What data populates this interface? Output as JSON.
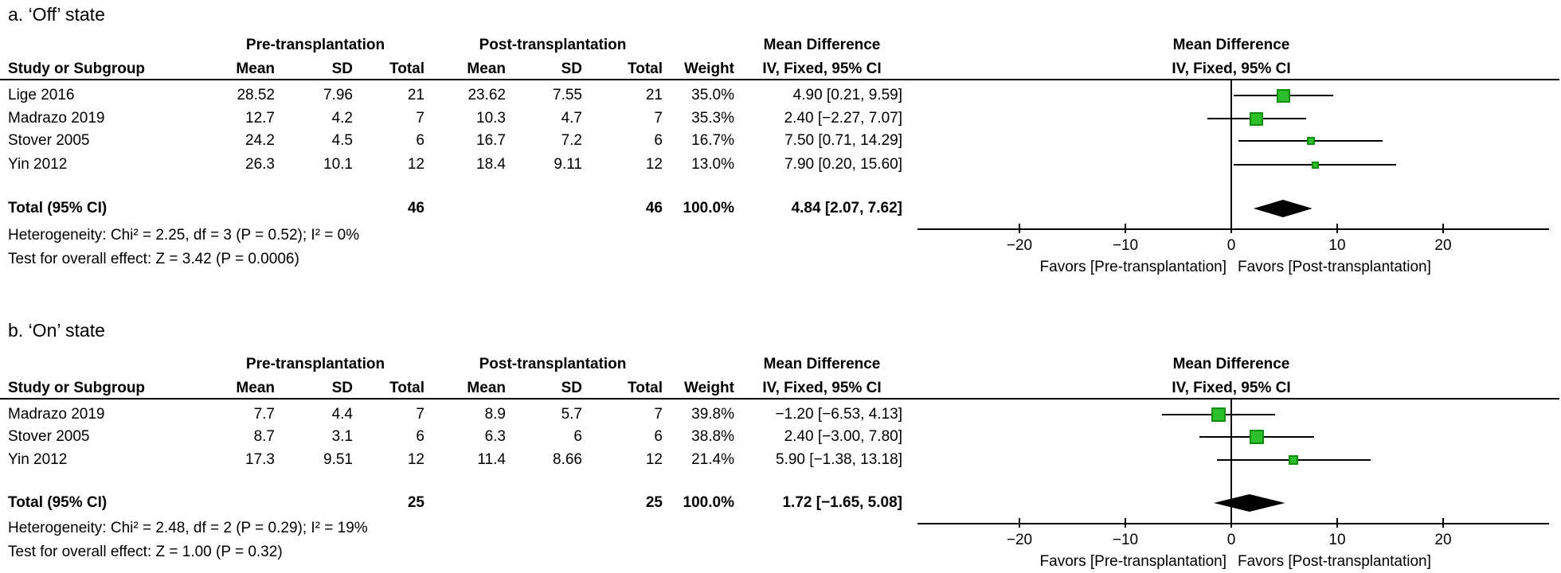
{
  "colors": {
    "background": "#ffffff",
    "text": "#000000",
    "line": "#000000",
    "marker_fill": "#2dbe2d",
    "marker_border": "#0d8e0d",
    "diamond_fill": "#000000"
  },
  "headers": {
    "group_pre": "Pre-transplantation",
    "group_post": "Post-transplantation",
    "study": "Study or Subgroup",
    "mean": "Mean",
    "sd": "SD",
    "total": "Total",
    "weight": "Weight",
    "md_line1": "Mean Difference",
    "md_line2": "IV, Fixed, 95% CI"
  },
  "chart_data": [
    {
      "type": "forest",
      "title": "a. ‘Off’ state",
      "studies": [
        {
          "study": "Lige 2016",
          "mean_pre": "28.52",
          "sd_pre": "7.96",
          "total_pre": "21",
          "mean_post": "23.62",
          "sd_post": "7.55",
          "total_post": "21",
          "weight": "35.0%",
          "weight_pct": 35.0,
          "ci_text": "4.90 [0.21, 9.59]",
          "md": 4.9,
          "lo": 0.21,
          "hi": 9.59
        },
        {
          "study": "Madrazo 2019",
          "mean_pre": "12.7",
          "sd_pre": "4.2",
          "total_pre": "7",
          "mean_post": "10.3",
          "sd_post": "4.7",
          "total_post": "7",
          "weight": "35.3%",
          "weight_pct": 35.3,
          "ci_text": "2.40 [−2.27, 7.07]",
          "md": 2.4,
          "lo": -2.27,
          "hi": 7.07
        },
        {
          "study": "Stover 2005",
          "mean_pre": "24.2",
          "sd_pre": "4.5",
          "total_pre": "6",
          "mean_post": "16.7",
          "sd_post": "7.2",
          "total_post": "6",
          "weight": "16.7%",
          "weight_pct": 16.7,
          "ci_text": "7.50 [0.71, 14.29]",
          "md": 7.5,
          "lo": 0.71,
          "hi": 14.29
        },
        {
          "study": "Yin 2012",
          "mean_pre": "26.3",
          "sd_pre": "10.1",
          "total_pre": "12",
          "mean_post": "18.4",
          "sd_post": "9.11",
          "total_post": "12",
          "weight": "13.0%",
          "weight_pct": 13.0,
          "ci_text": "7.90 [0.20, 15.60]",
          "md": 7.9,
          "lo": 0.2,
          "hi": 15.6
        }
      ],
      "total": {
        "label": "Total (95% CI)",
        "total_pre": "46",
        "total_post": "46",
        "weight": "100.0%",
        "ci_text": "4.84 [2.07, 7.62]",
        "md": 4.84,
        "lo": 2.07,
        "hi": 7.62
      },
      "heterogeneity": "Heterogeneity: Chi² = 2.25, df = 3 (P = 0.52); I² = 0%",
      "overall_effect": "Test for overall effect: Z = 3.42 (P = 0.0006)",
      "axis": {
        "xmin": -29.5,
        "xmax": 30,
        "tick_values": [
          -20,
          -10,
          0,
          10,
          20
        ],
        "tick_labels": [
          "−20",
          "−10",
          "0",
          "10",
          "20"
        ],
        "favors_left": "Favors [Pre-transplantation]",
        "favors_right": "Favors [Post-transplantation]"
      }
    },
    {
      "type": "forest",
      "title": "b. ‘On’ state",
      "studies": [
        {
          "study": "Madrazo 2019",
          "mean_pre": "7.7",
          "sd_pre": "4.4",
          "total_pre": "7",
          "mean_post": "8.9",
          "sd_post": "5.7",
          "total_post": "7",
          "weight": "39.8%",
          "weight_pct": 39.8,
          "ci_text": "−1.20 [−6.53, 4.13]",
          "md": -1.2,
          "lo": -6.53,
          "hi": 4.13
        },
        {
          "study": "Stover 2005",
          "mean_pre": "8.7",
          "sd_pre": "3.1",
          "total_pre": "6",
          "mean_post": "6.3",
          "sd_post": "6",
          "total_post": "6",
          "weight": "38.8%",
          "weight_pct": 38.8,
          "ci_text": "2.40 [−3.00, 7.80]",
          "md": 2.4,
          "lo": -3.0,
          "hi": 7.8
        },
        {
          "study": "Yin 2012",
          "mean_pre": "17.3",
          "sd_pre": "9.51",
          "total_pre": "12",
          "mean_post": "11.4",
          "sd_post": "8.66",
          "total_post": "12",
          "weight": "21.4%",
          "weight_pct": 21.4,
          "ci_text": "5.90 [−1.38, 13.18]",
          "md": 5.9,
          "lo": -1.38,
          "hi": 13.18
        }
      ],
      "total": {
        "label": "Total (95% CI)",
        "total_pre": "25",
        "total_post": "25",
        "weight": "100.0%",
        "ci_text": "1.72 [−1.65, 5.08]",
        "md": 1.72,
        "lo": -1.65,
        "hi": 5.08
      },
      "heterogeneity": "Heterogeneity: Chi² = 2.48, df = 2 (P = 0.29); I² = 19%",
      "overall_effect": "Test for overall effect: Z = 1.00 (P = 0.32)",
      "axis": {
        "xmin": -29.5,
        "xmax": 30,
        "tick_values": [
          -20,
          -10,
          0,
          10,
          20
        ],
        "tick_labels": [
          "−20",
          "−10",
          "0",
          "10",
          "20"
        ],
        "favors_left": "Favors [Pre-transplantation]",
        "favors_right": "Favors [Post-transplantation]"
      }
    }
  ]
}
